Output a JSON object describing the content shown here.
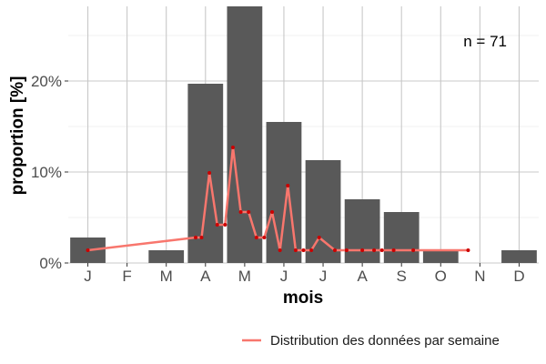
{
  "chart_data": {
    "type": "bar",
    "xlabel": "mois",
    "ylabel": "proportion [%]",
    "annotation": "n = 71",
    "categories": [
      "J",
      "F",
      "M",
      "A",
      "M",
      "J",
      "J",
      "A",
      "S",
      "O",
      "N",
      "D"
    ],
    "y_ticks": [
      {
        "value": 0,
        "label": "0%"
      },
      {
        "value": 10,
        "label": "10%"
      },
      {
        "value": 20,
        "label": "20%"
      }
    ],
    "ylim": [
      0,
      28.2
    ],
    "grid": true,
    "legend_position": "bottom-right",
    "series": [
      {
        "type": "bar",
        "color": "#595959",
        "values": [
          2.8,
          0,
          1.4,
          19.7,
          28.2,
          15.5,
          11.3,
          7.0,
          5.6,
          1.4,
          0,
          1.4
        ]
      },
      {
        "type": "line",
        "name": "Distribution des données par semaine",
        "color": "#f8766d",
        "point_color": "#cc0000",
        "x": [
          0.0,
          2.75,
          2.9,
          3.1,
          3.3,
          3.5,
          3.7,
          3.9,
          4.1,
          4.3,
          4.5,
          4.7,
          4.9,
          5.1,
          5.3,
          5.5,
          5.7,
          5.9,
          6.3,
          6.6,
          7.0,
          7.3,
          7.5,
          7.8,
          8.3,
          9.7
        ],
        "y": [
          1.4,
          2.8,
          2.8,
          9.9,
          4.2,
          4.2,
          12.7,
          5.6,
          5.6,
          2.8,
          2.8,
          5.6,
          1.4,
          8.5,
          1.4,
          1.4,
          1.4,
          2.8,
          1.4,
          1.4,
          1.4,
          1.4,
          1.4,
          1.4,
          1.4,
          1.4
        ]
      }
    ]
  }
}
